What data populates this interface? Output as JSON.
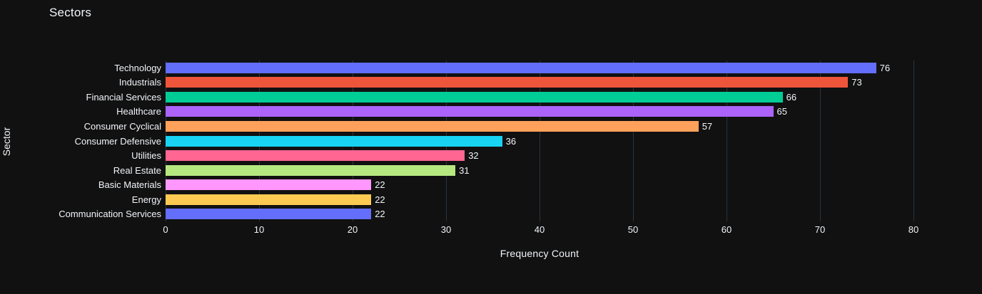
{
  "colors": {
    "background": "#111111",
    "text": "#f2f5fa",
    "grid": "#283442"
  },
  "chart_data": {
    "type": "bar",
    "orientation": "horizontal",
    "title": "Sectors",
    "xlabel": "Frequency Count",
    "ylabel": "Sector",
    "categories": [
      "Technology",
      "Industrials",
      "Financial Services",
      "Healthcare",
      "Consumer Cyclical",
      "Consumer Defensive",
      "Utilities",
      "Real Estate",
      "Basic Materials",
      "Energy",
      "Communication Services"
    ],
    "values": [
      76,
      73,
      66,
      65,
      57,
      36,
      32,
      31,
      22,
      22,
      22
    ],
    "bar_colors": [
      "#636EFA",
      "#EF553B",
      "#00CC96",
      "#AB63FA",
      "#FFA15A",
      "#19D3F3",
      "#FF6692",
      "#B6E880",
      "#FF97FF",
      "#FECB52",
      "#636EFA"
    ],
    "xticks": [
      0,
      10,
      20,
      30,
      40,
      50,
      60,
      70,
      80
    ],
    "xlim": [
      0,
      80
    ],
    "grid": true,
    "legend": false,
    "value_labels": "outside"
  }
}
